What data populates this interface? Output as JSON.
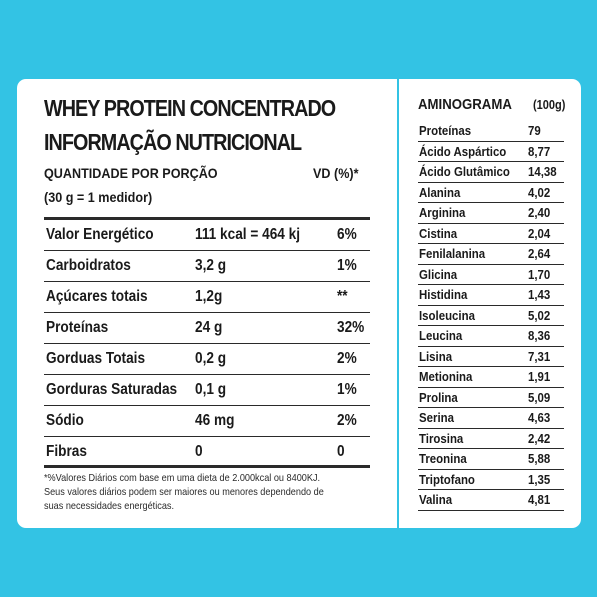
{
  "label": {
    "title_line1": "WHEY PROTEIN CONCENTRADO",
    "title_line2": "INFORMAÇÃO NUTRICIONAL",
    "portion_label": "QUANTIDADE POR PORÇÃO",
    "portion_size": "(30 g = 1 medidor)",
    "vd_header": "VD (%)*",
    "rows": [
      {
        "name": "Valor Energético",
        "amount": "111 kcal = 464 kj",
        "vd": "6%"
      },
      {
        "name": "Carboidratos",
        "amount": "3,2 g",
        "vd": "1%"
      },
      {
        "name": "Açúcares totais",
        "amount": "1,2g",
        "vd": "**"
      },
      {
        "name": "Proteínas",
        "amount": "24 g",
        "vd": "32%"
      },
      {
        "name": "Gorduas Totais",
        "amount": "0,2 g",
        "vd": "2%"
      },
      {
        "name": "Gorduras Saturadas",
        "amount": "0,1 g",
        "vd": "1%"
      },
      {
        "name": "Sódio",
        "amount": "46 mg",
        "vd": "2%"
      },
      {
        "name": "Fibras",
        "amount": "0",
        "vd": "0"
      }
    ],
    "footnote_line1": "*%Valores Diários com base em uma dieta de 2.000kcal ou 8400KJ.",
    "footnote_line2": "Seus valores diários podem ser maiores ou menores dependendo de",
    "footnote_line3": "suas necessidades energéticas."
  },
  "aminogram": {
    "title": "AMINOGRAMA",
    "unit": "(100g)",
    "rows": [
      {
        "name": "Proteínas",
        "value": "79"
      },
      {
        "name": "Ácido Aspártico",
        "value": "8,77"
      },
      {
        "name": "Ácido Glutâmico",
        "value": "14,38"
      },
      {
        "name": "Alanina",
        "value": "4,02"
      },
      {
        "name": "Arginina",
        "value": "2,40"
      },
      {
        "name": "Cistina",
        "value": "2,04"
      },
      {
        "name": "Fenilalanina",
        "value": "2,64"
      },
      {
        "name": "Glicina",
        "value": "1,70"
      },
      {
        "name": "Histidina",
        "value": "1,43"
      },
      {
        "name": "Isoleucina",
        "value": "5,02"
      },
      {
        "name": "Leucina",
        "value": "8,36"
      },
      {
        "name": "Lisina",
        "value": "7,31"
      },
      {
        "name": "Metionina",
        "value": "1,91"
      },
      {
        "name": "Prolina",
        "value": "5,09"
      },
      {
        "name": "Serina",
        "value": "4,63"
      },
      {
        "name": "Tirosina",
        "value": "2,42"
      },
      {
        "name": "Treonina",
        "value": "5,88"
      },
      {
        "name": "Triptofano",
        "value": "1,35"
      },
      {
        "name": "Valina",
        "value": "4,81"
      }
    ]
  },
  "colors": {
    "background": "#33c3e4",
    "card": "#ffffff",
    "text": "#1a1a1a"
  }
}
